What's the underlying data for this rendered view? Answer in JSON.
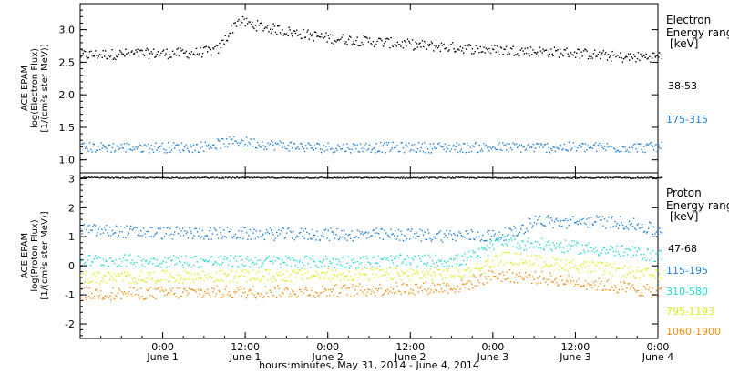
{
  "chart_data": [
    {
      "type": "scatter",
      "panel": "electron",
      "ylabel": [
        "ACE EPAM",
        "log(Electron Flux)",
        "[1/(cm²s ster MeV)]"
      ],
      "ylim": [
        0.8,
        3.4
      ],
      "yticks": [
        "1.0",
        "1.5",
        "2.0",
        "2.5",
        "3.0"
      ],
      "ytick_values": [
        1.0,
        1.5,
        2.0,
        2.5,
        3.0
      ],
      "legend": {
        "title": [
          "Electron",
          "Energy ranges",
          "[keV]"
        ],
        "entries": [
          {
            "label": "38-53",
            "color": "#000000"
          },
          {
            "label": "175-315",
            "color": "#1e7fd8"
          }
        ]
      },
      "series": [
        {
          "name": "38-53",
          "color": "#000000",
          "baseline": 2.65,
          "segments": [
            [
              -0.5,
              2.62
            ],
            [
              -0.1,
              2.64
            ],
            [
              0.2,
              2.65
            ],
            [
              0.33,
              2.7
            ],
            [
              0.4,
              2.95
            ],
            [
              0.45,
              3.15
            ],
            [
              0.55,
              3.08
            ],
            [
              0.75,
              2.98
            ],
            [
              1.0,
              2.88
            ],
            [
              1.3,
              2.82
            ],
            [
              1.6,
              2.76
            ],
            [
              2.0,
              2.7
            ],
            [
              2.5,
              2.65
            ],
            [
              2.8,
              2.58
            ],
            [
              3.02,
              2.6
            ]
          ]
        },
        {
          "name": "175-315",
          "color": "#1e7fd8",
          "baseline": 1.2,
          "segments": [
            [
              -0.5,
              1.2
            ],
            [
              0.2,
              1.2
            ],
            [
              0.45,
              1.3
            ],
            [
              0.6,
              1.25
            ],
            [
              0.9,
              1.2
            ],
            [
              3.02,
              1.2
            ]
          ]
        }
      ]
    },
    {
      "type": "scatter",
      "panel": "proton",
      "ylabel": [
        "ACE EPAM",
        "log(Proton Flux)",
        "[1/(cm²s ster MeV)]"
      ],
      "ylim": [
        -2.5,
        3.2
      ],
      "yticks": [
        "-2",
        "-1",
        "0",
        "1",
        "2",
        "3"
      ],
      "ytick_values": [
        -2,
        -1,
        0,
        1,
        2,
        3
      ],
      "legend": {
        "title": [
          "Proton",
          "Energy ranges",
          "[keV]"
        ],
        "entries": [
          {
            "label": "47-68",
            "color": "#000000"
          },
          {
            "label": "115-195",
            "color": "#1e7fd8"
          },
          {
            "label": "310-580",
            "color": "#22d8cf"
          },
          {
            "label": "795-1193",
            "color": "#d6ee17"
          },
          {
            "label": "1060-1900",
            "color": "#f28d0f"
          }
        ]
      },
      "series": [
        {
          "name": "47-68",
          "color": "#000000",
          "segments": [
            [
              -0.5,
              3.05
            ],
            [
              3.02,
              3.05
            ]
          ]
        },
        {
          "name": "115-195",
          "color": "#1e7fd8",
          "segments": [
            [
              -0.5,
              1.25
            ],
            [
              0.0,
              1.15
            ],
            [
              1.0,
              1.1
            ],
            [
              2.0,
              1.05
            ],
            [
              2.15,
              1.2
            ],
            [
              2.25,
              1.6
            ],
            [
              2.4,
              1.5
            ],
            [
              2.6,
              1.55
            ],
            [
              2.8,
              1.5
            ],
            [
              3.02,
              1.2
            ]
          ]
        },
        {
          "name": "310-580",
          "color": "#22d8cf",
          "segments": [
            [
              -0.5,
              0.2
            ],
            [
              1.0,
              0.15
            ],
            [
              1.8,
              0.2
            ],
            [
              1.95,
              0.5
            ],
            [
              2.05,
              0.95
            ],
            [
              2.15,
              0.8
            ],
            [
              2.4,
              0.7
            ],
            [
              2.7,
              0.55
            ],
            [
              3.02,
              0.35
            ]
          ]
        },
        {
          "name": "795-1193",
          "color": "#d6ee17",
          "segments": [
            [
              -0.5,
              -0.4
            ],
            [
              1.0,
              -0.3
            ],
            [
              1.8,
              -0.25
            ],
            [
              1.95,
              0.0
            ],
            [
              2.05,
              0.3
            ],
            [
              2.3,
              0.15
            ],
            [
              2.7,
              -0.1
            ],
            [
              3.02,
              -0.35
            ]
          ]
        },
        {
          "name": "1060-1900",
          "color": "#f28d0f",
          "segments": [
            [
              -0.5,
              -0.95
            ],
            [
              1.0,
              -0.85
            ],
            [
              1.8,
              -0.7
            ],
            [
              2.0,
              -0.3
            ],
            [
              2.3,
              -0.4
            ],
            [
              2.6,
              -0.6
            ],
            [
              3.02,
              -0.9
            ]
          ]
        }
      ]
    }
  ],
  "x_axis": {
    "xlabel": "hours:minutes, May 31, 2014 - June  4, 2014",
    "ticks": [
      {
        "x": 0.0,
        "time": "0:00",
        "day": "June 1"
      },
      {
        "x": 0.5,
        "time": "12:00",
        "day": "June 1"
      },
      {
        "x": 1.0,
        "time": "0:00",
        "day": "June 2"
      },
      {
        "x": 1.5,
        "time": "12:00",
        "day": "June 2"
      },
      {
        "x": 2.0,
        "time": "0:00",
        "day": "June 3"
      },
      {
        "x": 2.5,
        "time": "12:00",
        "day": "June 3"
      },
      {
        "x": 3.0,
        "time": "0:00",
        "day": "June 4"
      }
    ],
    "xlim": [
      -0.5,
      3.0
    ],
    "units": "days since June 1 0:00"
  }
}
